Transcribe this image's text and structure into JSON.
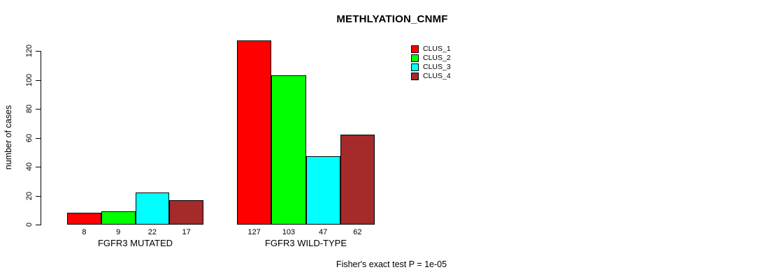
{
  "title": "METHLYATION_CNMF",
  "y_axis_label": "number of cases",
  "footer": "Fisher's exact test P = 1e-05",
  "chart_data": {
    "type": "bar",
    "title": "METHLYATION_CNMF",
    "xlabel": "",
    "ylabel": "number of cases",
    "ylim": [
      0,
      120
    ],
    "yticks": [
      0,
      20,
      40,
      60,
      80,
      100,
      120
    ],
    "grid": false,
    "categories": [
      "FGFR3 MUTATED",
      "FGFR3 WILD-TYPE"
    ],
    "series": [
      {
        "name": "CLUS_1",
        "color": "#FF0000",
        "values": [
          8,
          127
        ]
      },
      {
        "name": "CLUS_2",
        "color": "#00FF00",
        "values": [
          9,
          103
        ]
      },
      {
        "name": "CLUS_3",
        "color": "#00FFFF",
        "values": [
          22,
          47
        ]
      },
      {
        "name": "CLUS_4",
        "color": "#A52A2A",
        "values": [
          17,
          62
        ]
      }
    ],
    "bar_value_labels": [
      [
        8,
        9,
        22,
        17
      ],
      [
        127,
        103,
        47,
        62
      ]
    ],
    "legend": [
      {
        "label": "CLUS_1",
        "color": "#FF0000"
      },
      {
        "label": "CLUS_2",
        "color": "#00FF00"
      },
      {
        "label": "CLUS_3",
        "color": "#00FFFF"
      },
      {
        "label": "CLUS_4",
        "color": "#A52A2A"
      }
    ],
    "legend_position": "topright",
    "annotation": "Fisher's exact test P = 1e-05",
    "bar_border_color": "#000000",
    "background_color": "#FFFFFF"
  }
}
